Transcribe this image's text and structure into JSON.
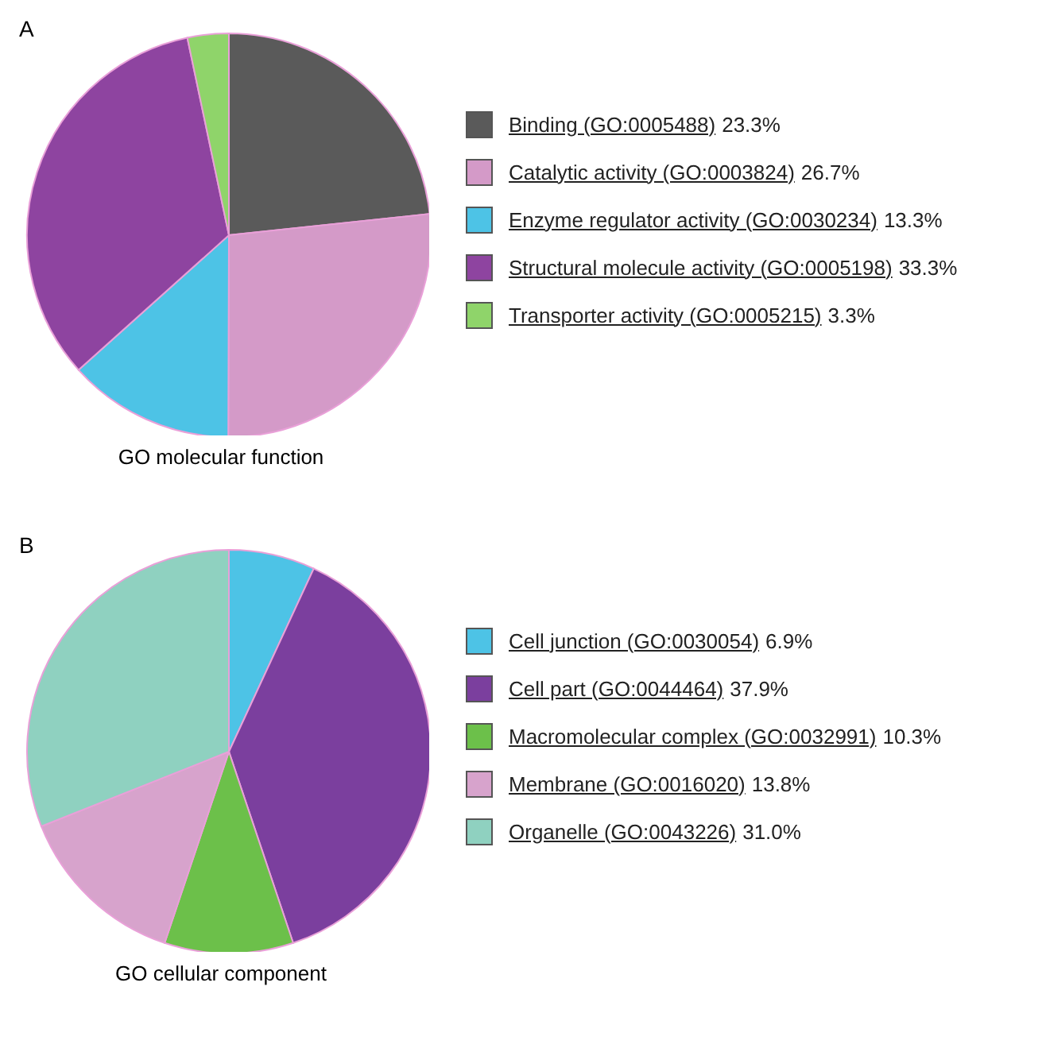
{
  "chart_data": [
    {
      "type": "pie",
      "title": "GO molecular function",
      "annotations": [
        "A"
      ],
      "legend": "right",
      "categories": [
        "Binding (GO:0005488)",
        "Catalytic activity (GO:0003824)",
        "Enzyme regulator activity (GO:0030234)",
        "Structural molecule activity (GO:0005198)",
        "Transporter activity (GO:0005215)"
      ],
      "values": [
        23.3,
        26.7,
        13.3,
        33.3,
        3.3
      ],
      "value_labels": [
        "23.3%",
        "26.7%",
        "13.3%",
        "33.3%",
        "3.3%"
      ],
      "colors": [
        "#5a5a5a",
        "#d49ac8",
        "#4dc3e6",
        "#8e44a0",
        "#8fd46a"
      ]
    },
    {
      "type": "pie",
      "title": "GO cellular component",
      "annotations": [
        "B"
      ],
      "legend": "right",
      "categories": [
        "Cell junction (GO:0030054)",
        "Cell part (GO:0044464)",
        "Macromolecular complex (GO:0032991)",
        "Membrane (GO:0016020)",
        "Organelle (GO:0043226)"
      ],
      "values": [
        6.9,
        37.9,
        10.3,
        13.8,
        31.0
      ],
      "value_labels": [
        "6.9%",
        "37.9%",
        "10.3%",
        "13.8%",
        "31.0%"
      ],
      "colors": [
        "#4dc3e6",
        "#7b3f9e",
        "#6cc04a",
        "#d7a3cc",
        "#8fd1c0"
      ]
    }
  ]
}
